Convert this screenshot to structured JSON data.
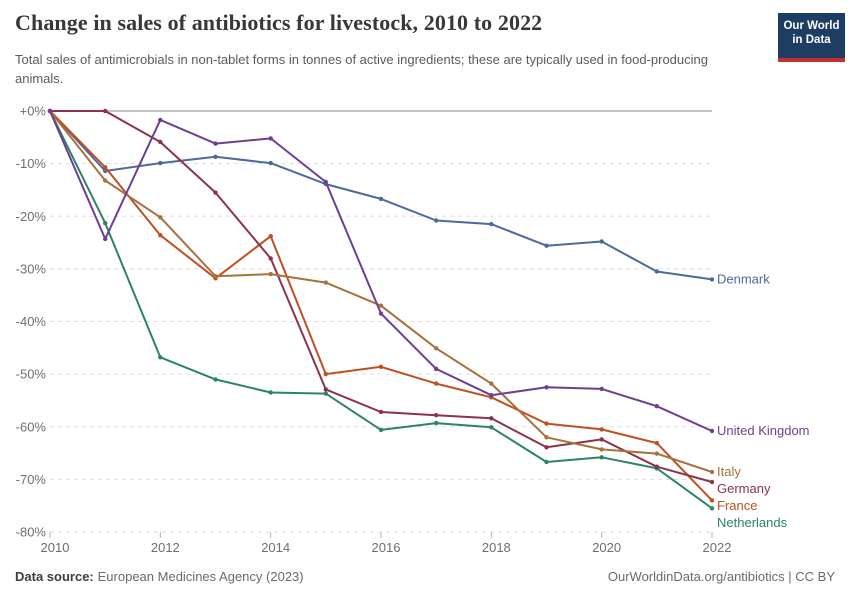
{
  "chart_data": {
    "type": "line",
    "title": "Change in sales of antibiotics for livestock, 2010 to 2022",
    "subtitle": "Total sales of antimicrobials in non-tablet forms in tonnes of active ingredients; these are typically used in food-producing animals.",
    "unit": "%",
    "x": [
      2010,
      2011,
      2012,
      2013,
      2014,
      2015,
      2016,
      2017,
      2018,
      2019,
      2020,
      2021,
      2022
    ],
    "x_ticks": [
      2010,
      2012,
      2014,
      2016,
      2018,
      2020,
      2022
    ],
    "ylim": [
      -80,
      0
    ],
    "y_ticks": [
      {
        "v": 0,
        "label": "+0%"
      },
      {
        "v": -10,
        "label": "-10%"
      },
      {
        "v": -20,
        "label": "-20%"
      },
      {
        "v": -30,
        "label": "-30%"
      },
      {
        "v": -40,
        "label": "-40%"
      },
      {
        "v": -50,
        "label": "-50%"
      },
      {
        "v": -60,
        "label": "-60%"
      },
      {
        "v": -70,
        "label": "-70%"
      },
      {
        "v": -80,
        "label": "-80%"
      }
    ],
    "grid": "horizontal-dashed",
    "legend_position": "right-end-labels",
    "series": [
      {
        "name": "Denmark",
        "color": "#4C6A9C",
        "values": [
          0,
          -11.4,
          -9.9,
          -8.7,
          -9.9,
          -13.9,
          -16.7,
          -20.8,
          -21.5,
          -25.6,
          -24.8,
          -30.5,
          -32.0
        ]
      },
      {
        "name": "United Kingdom",
        "color": "#6D3E91",
        "values": [
          0,
          -24.3,
          -1.7,
          -6.2,
          -5.2,
          -13.5,
          -38.5,
          -49.0,
          -54.0,
          -52.5,
          -52.8,
          -56.1,
          -60.8
        ]
      },
      {
        "name": "Italy",
        "color": "#A8713C",
        "values": [
          0,
          -13.2,
          -20.2,
          -31.4,
          -31.0,
          -32.6,
          -37.0,
          -45.1,
          -51.8,
          -62.0,
          -64.3,
          -65.1,
          -68.6
        ]
      },
      {
        "name": "Germany",
        "color": "#8B3349",
        "values": [
          0,
          0,
          -5.9,
          -15.5,
          -28.0,
          -52.9,
          -57.2,
          -57.8,
          -58.4,
          -63.9,
          -62.4,
          -67.6,
          -70.5
        ]
      },
      {
        "name": "France",
        "color": "#C04F22",
        "values": [
          0,
          -10.7,
          -23.6,
          -31.8,
          -23.8,
          -50.0,
          -48.6,
          -51.8,
          -54.4,
          -59.4,
          -60.5,
          -63.1,
          -74.0
        ]
      },
      {
        "name": "Netherlands",
        "color": "#2C8465",
        "values": [
          0,
          -21.3,
          -46.8,
          -51.0,
          -53.5,
          -53.7,
          -60.6,
          -59.3,
          -60.1,
          -66.7,
          -65.8,
          -67.9,
          -75.5
        ]
      }
    ]
  },
  "logo": {
    "line1": "Our World",
    "line2": "in Data"
  },
  "brand": {
    "logo_bg": "#1d3d63",
    "logo_stripe": "#c5302b"
  },
  "axis_colors": {
    "zero_line": "#c6c6c6",
    "gridline": "#dddddd",
    "tick": "#b3b3b3",
    "label": "#6e6e6e"
  },
  "footer": {
    "source_label": "Data source:",
    "source_value": "European Medicines Agency (2023)",
    "attribution": "OurWorldinData.org/antibiotics | CC BY"
  }
}
